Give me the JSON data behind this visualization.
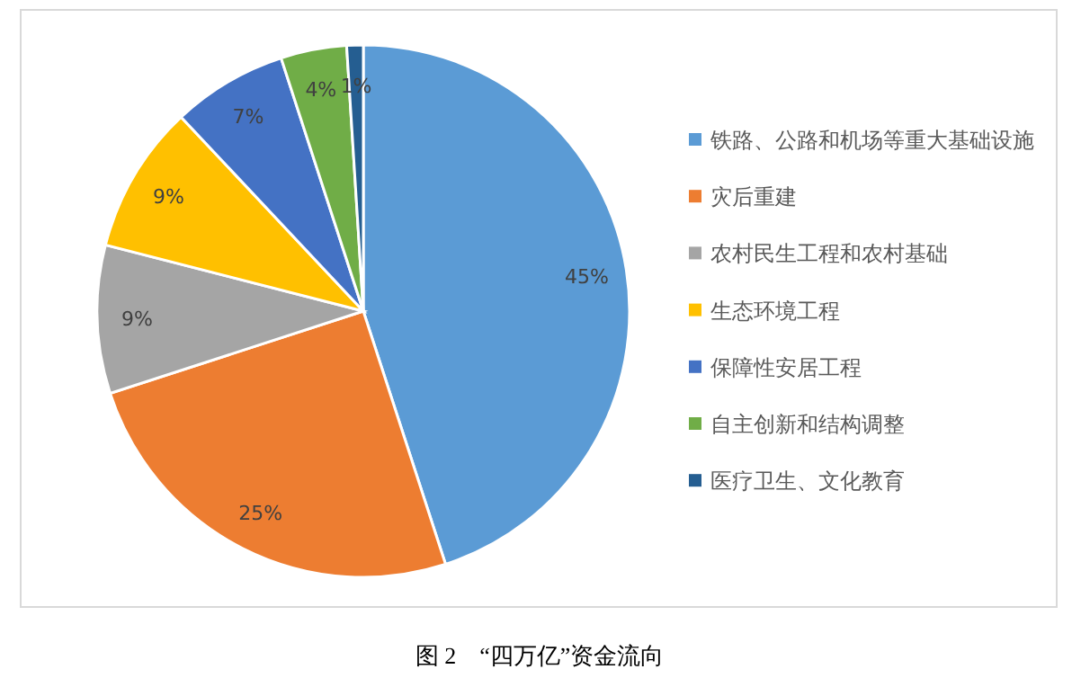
{
  "chart_data": {
    "type": "pie",
    "title": "图 2　“四万亿”资金流向",
    "categories": [
      "铁路、公路和机场等重大基础设施",
      "灾后重建",
      "农村民生工程和农村基础",
      "生态环境工程",
      "保障性安居工程",
      "自主创新和结构调整",
      "医疗卫生、文化教育"
    ],
    "values": [
      45,
      25,
      9,
      9,
      7,
      4,
      1
    ],
    "colors": [
      "#5b9bd5",
      "#ed7d31",
      "#a5a5a5",
      "#ffc000",
      "#4472c4",
      "#70ad47",
      "#255e91"
    ],
    "value_labels": [
      "45%",
      "25%",
      "9%",
      "9%",
      "7%",
      "4%",
      "1%"
    ],
    "legend": "right"
  }
}
